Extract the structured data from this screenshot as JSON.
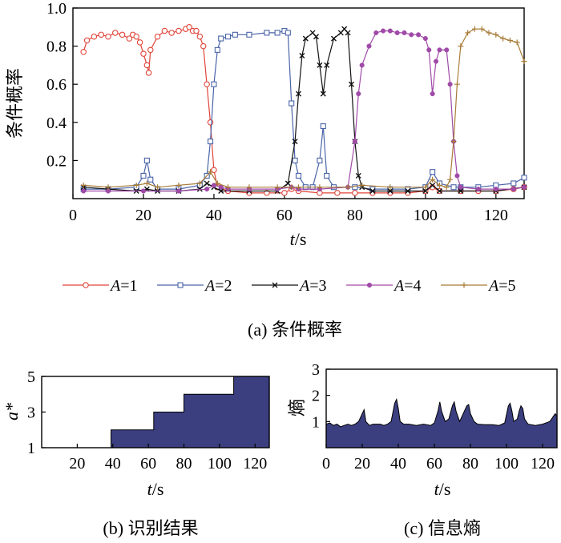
{
  "chart_data": [
    {
      "id": "a",
      "type": "line",
      "caption": "(a) 条件概率",
      "xlabel_italic": "t",
      "xlabel_unit": "/s",
      "ylabel": "条件概率",
      "xlim": [
        0,
        128
      ],
      "ylim": [
        0,
        1.0
      ],
      "x_ticks": [
        0,
        20,
        40,
        60,
        80,
        100,
        120
      ],
      "y_ticks": [
        0.2,
        0.4,
        0.6,
        0.8,
        1.0
      ],
      "y_tick_labels": [
        "0.2",
        "0.4",
        "0.6",
        "0.8",
        "1.0"
      ],
      "legend_position": "bottom",
      "series": [
        {
          "legend_var": "A",
          "legend_val": "=1",
          "color": "#e0453a",
          "marker": "circle",
          "points": [
            [
              3,
              0.77
            ],
            [
              4,
              0.83
            ],
            [
              6,
              0.85
            ],
            [
              8,
              0.86
            ],
            [
              10,
              0.85
            ],
            [
              12,
              0.87
            ],
            [
              14,
              0.86
            ],
            [
              16,
              0.84
            ],
            [
              17,
              0.86
            ],
            [
              18,
              0.85
            ],
            [
              19,
              0.82
            ],
            [
              20,
              0.76
            ],
            [
              21,
              0.7
            ],
            [
              21.5,
              0.66
            ],
            [
              22,
              0.78
            ],
            [
              24,
              0.85
            ],
            [
              26,
              0.88
            ],
            [
              28,
              0.87
            ],
            [
              30,
              0.88
            ],
            [
              32,
              0.89
            ],
            [
              33,
              0.9
            ],
            [
              34,
              0.88
            ],
            [
              35,
              0.88
            ],
            [
              36,
              0.85
            ],
            [
              37,
              0.8
            ],
            [
              38,
              0.6
            ],
            [
              39,
              0.4
            ],
            [
              40,
              0.15
            ],
            [
              41,
              0.06
            ],
            [
              44,
              0.04
            ],
            [
              50,
              0.03
            ],
            [
              55,
              0.03
            ],
            [
              60,
              0.03
            ],
            [
              62,
              0.05
            ],
            [
              64,
              0.04
            ],
            [
              70,
              0.03
            ],
            [
              75,
              0.03
            ],
            [
              80,
              0.03
            ],
            [
              85,
              0.03
            ],
            [
              90,
              0.03
            ],
            [
              95,
              0.03
            ],
            [
              100,
              0.04
            ],
            [
              102,
              0.06
            ],
            [
              104,
              0.04
            ],
            [
              110,
              0.04
            ],
            [
              115,
              0.04
            ],
            [
              120,
              0.04
            ],
            [
              125,
              0.05
            ],
            [
              128,
              0.06
            ]
          ]
        },
        {
          "legend_var": "A",
          "legend_val": "=2",
          "color": "#4a64a8",
          "marker": "square",
          "points": [
            [
              3,
              0.05
            ],
            [
              10,
              0.05
            ],
            [
              18,
              0.06
            ],
            [
              20,
              0.12
            ],
            [
              21,
              0.2
            ],
            [
              22,
              0.1
            ],
            [
              24,
              0.05
            ],
            [
              30,
              0.05
            ],
            [
              36,
              0.07
            ],
            [
              38,
              0.12
            ],
            [
              39,
              0.3
            ],
            [
              40,
              0.6
            ],
            [
              41,
              0.78
            ],
            [
              42,
              0.84
            ],
            [
              44,
              0.85
            ],
            [
              46,
              0.86
            ],
            [
              50,
              0.86
            ],
            [
              55,
              0.87
            ],
            [
              58,
              0.87
            ],
            [
              60,
              0.88
            ],
            [
              61,
              0.87
            ],
            [
              62,
              0.5
            ],
            [
              63,
              0.2
            ],
            [
              64,
              0.12
            ],
            [
              66,
              0.06
            ],
            [
              68,
              0.06
            ],
            [
              70,
              0.2
            ],
            [
              71,
              0.38
            ],
            [
              72,
              0.12
            ],
            [
              74,
              0.06
            ],
            [
              80,
              0.06
            ],
            [
              85,
              0.05
            ],
            [
              90,
              0.05
            ],
            [
              95,
              0.05
            ],
            [
              100,
              0.06
            ],
            [
              102,
              0.14
            ],
            [
              104,
              0.08
            ],
            [
              108,
              0.06
            ],
            [
              110,
              0.06
            ],
            [
              115,
              0.06
            ],
            [
              120,
              0.07
            ],
            [
              125,
              0.08
            ],
            [
              128,
              0.11
            ]
          ]
        },
        {
          "legend_var": "A",
          "legend_val": "=3",
          "color": "#111111",
          "marker": "x",
          "points": [
            [
              3,
              0.06
            ],
            [
              10,
              0.05
            ],
            [
              18,
              0.04
            ],
            [
              21,
              0.05
            ],
            [
              24,
              0.04
            ],
            [
              30,
              0.04
            ],
            [
              36,
              0.05
            ],
            [
              38,
              0.08
            ],
            [
              40,
              0.06
            ],
            [
              42,
              0.04
            ],
            [
              50,
              0.04
            ],
            [
              58,
              0.04
            ],
            [
              61,
              0.08
            ],
            [
              63,
              0.3
            ],
            [
              64,
              0.55
            ],
            [
              65,
              0.75
            ],
            [
              66,
              0.84
            ],
            [
              68,
              0.87
            ],
            [
              69,
              0.85
            ],
            [
              70,
              0.7
            ],
            [
              71,
              0.55
            ],
            [
              72,
              0.7
            ],
            [
              74,
              0.84
            ],
            [
              76,
              0.87
            ],
            [
              77,
              0.89
            ],
            [
              78,
              0.87
            ],
            [
              79,
              0.6
            ],
            [
              80,
              0.3
            ],
            [
              81,
              0.12
            ],
            [
              82,
              0.06
            ],
            [
              85,
              0.04
            ],
            [
              90,
              0.04
            ],
            [
              95,
              0.04
            ],
            [
              100,
              0.04
            ],
            [
              102,
              0.07
            ],
            [
              104,
              0.04
            ],
            [
              110,
              0.04
            ],
            [
              120,
              0.04
            ],
            [
              128,
              0.06
            ]
          ]
        },
        {
          "legend_var": "A",
          "legend_val": "=4",
          "color": "#a04aa8",
          "marker": "dot",
          "points": [
            [
              3,
              0.04
            ],
            [
              10,
              0.04
            ],
            [
              20,
              0.04
            ],
            [
              30,
              0.04
            ],
            [
              38,
              0.05
            ],
            [
              40,
              0.07
            ],
            [
              42,
              0.06
            ],
            [
              44,
              0.05
            ],
            [
              50,
              0.05
            ],
            [
              58,
              0.05
            ],
            [
              62,
              0.06
            ],
            [
              64,
              0.05
            ],
            [
              70,
              0.05
            ],
            [
              78,
              0.06
            ],
            [
              80,
              0.3
            ],
            [
              81,
              0.55
            ],
            [
              82,
              0.7
            ],
            [
              84,
              0.8
            ],
            [
              86,
              0.87
            ],
            [
              88,
              0.88
            ],
            [
              90,
              0.88
            ],
            [
              92,
              0.87
            ],
            [
              94,
              0.87
            ],
            [
              96,
              0.86
            ],
            [
              98,
              0.86
            ],
            [
              100,
              0.84
            ],
            [
              101,
              0.78
            ],
            [
              102,
              0.55
            ],
            [
              103,
              0.72
            ],
            [
              104,
              0.78
            ],
            [
              106,
              0.78
            ],
            [
              107,
              0.6
            ],
            [
              108,
              0.3
            ],
            [
              109,
              0.12
            ],
            [
              110,
              0.06
            ],
            [
              115,
              0.05
            ],
            [
              120,
              0.05
            ],
            [
              125,
              0.05
            ],
            [
              128,
              0.06
            ]
          ]
        },
        {
          "legend_var": "A",
          "legend_val": "=5",
          "color": "#a87c38",
          "marker": "plus",
          "points": [
            [
              3,
              0.07
            ],
            [
              10,
              0.06
            ],
            [
              18,
              0.07
            ],
            [
              21,
              0.08
            ],
            [
              24,
              0.06
            ],
            [
              30,
              0.07
            ],
            [
              36,
              0.08
            ],
            [
              39,
              0.14
            ],
            [
              41,
              0.08
            ],
            [
              44,
              0.06
            ],
            [
              50,
              0.06
            ],
            [
              58,
              0.06
            ],
            [
              62,
              0.06
            ],
            [
              64,
              0.06
            ],
            [
              70,
              0.06
            ],
            [
              78,
              0.06
            ],
            [
              82,
              0.07
            ],
            [
              90,
              0.06
            ],
            [
              100,
              0.06
            ],
            [
              102,
              0.1
            ],
            [
              104,
              0.07
            ],
            [
              106,
              0.06
            ],
            [
              107,
              0.1
            ],
            [
              108,
              0.3
            ],
            [
              109,
              0.6
            ],
            [
              110,
              0.8
            ],
            [
              112,
              0.87
            ],
            [
              114,
              0.89
            ],
            [
              116,
              0.89
            ],
            [
              118,
              0.87
            ],
            [
              120,
              0.86
            ],
            [
              122,
              0.84
            ],
            [
              124,
              0.83
            ],
            [
              126,
              0.82
            ],
            [
              128,
              0.72
            ]
          ]
        }
      ]
    },
    {
      "id": "b",
      "type": "area",
      "caption": "(b) 识别结果",
      "xlabel_italic": "t",
      "xlabel_unit": "/s",
      "ylabel": "a*",
      "xlim": [
        0,
        128
      ],
      "ylim": [
        1,
        5
      ],
      "x_ticks": [
        20,
        40,
        60,
        80,
        100,
        120
      ],
      "y_ticks": [
        1,
        3,
        5
      ],
      "fill": "#3b3f80",
      "steps": [
        [
          0,
          1
        ],
        [
          39,
          2
        ],
        [
          63,
          3
        ],
        [
          80,
          4
        ],
        [
          108,
          5
        ],
        [
          128,
          5
        ]
      ]
    },
    {
      "id": "c",
      "type": "area",
      "caption": "(c) 信息熵",
      "xlabel_italic": "t",
      "xlabel_unit": "/s",
      "ylabel": "熵",
      "xlim": [
        0,
        128
      ],
      "ylim": [
        0,
        3
      ],
      "x_ticks": [
        0,
        20,
        40,
        60,
        80,
        100,
        120
      ],
      "y_ticks": [
        1,
        2,
        3
      ],
      "fill": "#3b3f80",
      "points": [
        [
          0,
          0.9
        ],
        [
          2,
          0.95
        ],
        [
          4,
          0.85
        ],
        [
          6,
          0.9
        ],
        [
          8,
          0.8
        ],
        [
          10,
          0.85
        ],
        [
          12,
          0.9
        ],
        [
          14,
          0.85
        ],
        [
          16,
          0.9
        ],
        [
          18,
          1.0
        ],
        [
          20,
          1.3
        ],
        [
          21,
          1.45
        ],
        [
          22,
          1.0
        ],
        [
          24,
          0.85
        ],
        [
          26,
          0.9
        ],
        [
          30,
          0.9
        ],
        [
          32,
          0.85
        ],
        [
          34,
          0.9
        ],
        [
          36,
          1.0
        ],
        [
          38,
          1.7
        ],
        [
          39,
          1.85
        ],
        [
          40,
          1.5
        ],
        [
          41,
          1.0
        ],
        [
          43,
          0.9
        ],
        [
          46,
          0.9
        ],
        [
          50,
          0.85
        ],
        [
          54,
          0.9
        ],
        [
          58,
          0.85
        ],
        [
          60,
          0.95
        ],
        [
          62,
          1.4
        ],
        [
          63,
          1.75
        ],
        [
          64,
          1.4
        ],
        [
          66,
          1.0
        ],
        [
          68,
          1.1
        ],
        [
          70,
          1.6
        ],
        [
          71,
          1.75
        ],
        [
          72,
          1.4
        ],
        [
          74,
          1.0
        ],
        [
          76,
          1.3
        ],
        [
          78,
          1.6
        ],
        [
          79,
          1.65
        ],
        [
          80,
          1.3
        ],
        [
          82,
          1.0
        ],
        [
          84,
          0.9
        ],
        [
          88,
          0.88
        ],
        [
          92,
          0.88
        ],
        [
          96,
          0.85
        ],
        [
          99,
          0.95
        ],
        [
          101,
          1.6
        ],
        [
          102,
          1.7
        ],
        [
          103,
          1.4
        ],
        [
          104,
          1.0
        ],
        [
          106,
          1.1
        ],
        [
          107,
          1.4
        ],
        [
          108,
          1.6
        ],
        [
          109,
          1.5
        ],
        [
          110,
          1.1
        ],
        [
          112,
          0.9
        ],
        [
          116,
          0.85
        ],
        [
          120,
          0.9
        ],
        [
          124,
          1.0
        ],
        [
          126,
          1.2
        ],
        [
          127,
          1.3
        ],
        [
          128,
          1.2
        ]
      ]
    }
  ]
}
